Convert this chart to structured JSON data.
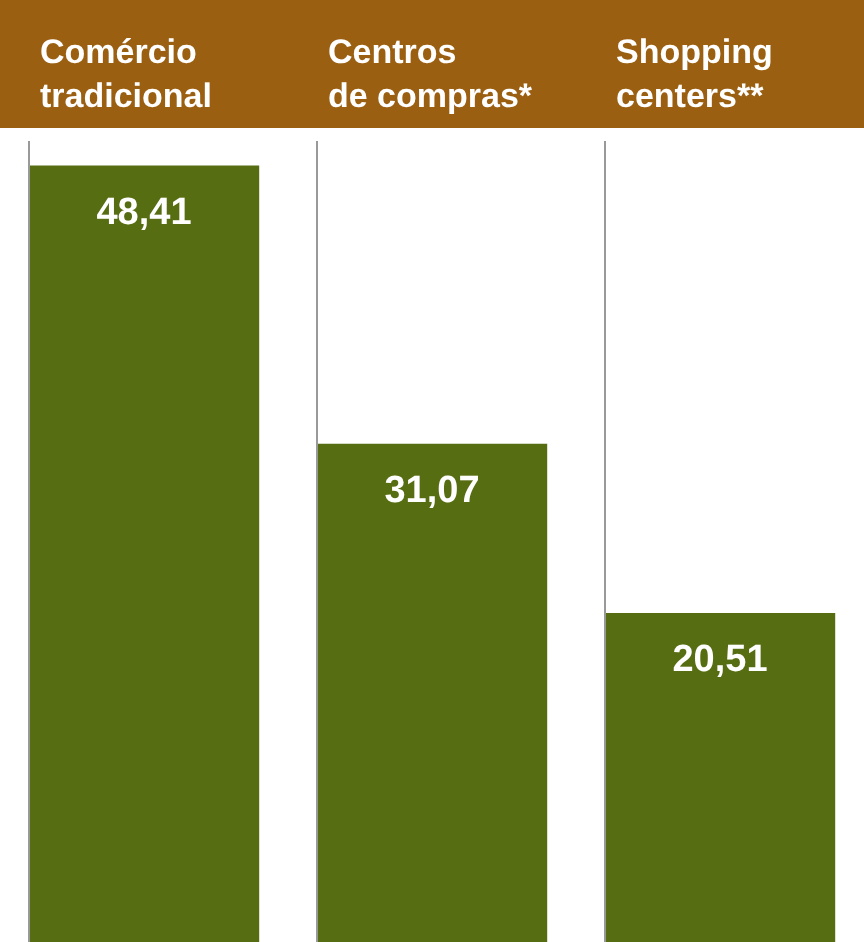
{
  "chart_data": {
    "type": "bar",
    "categories": [
      "Comércio\ntradicional",
      "Centros\nde compras*",
      "Shopping\ncenters**"
    ],
    "values": [
      48.41,
      31.07,
      20.51
    ],
    "value_labels": [
      "48,41",
      "31,07",
      "20,51"
    ],
    "color": "#566d12",
    "grid": "x"
  }
}
